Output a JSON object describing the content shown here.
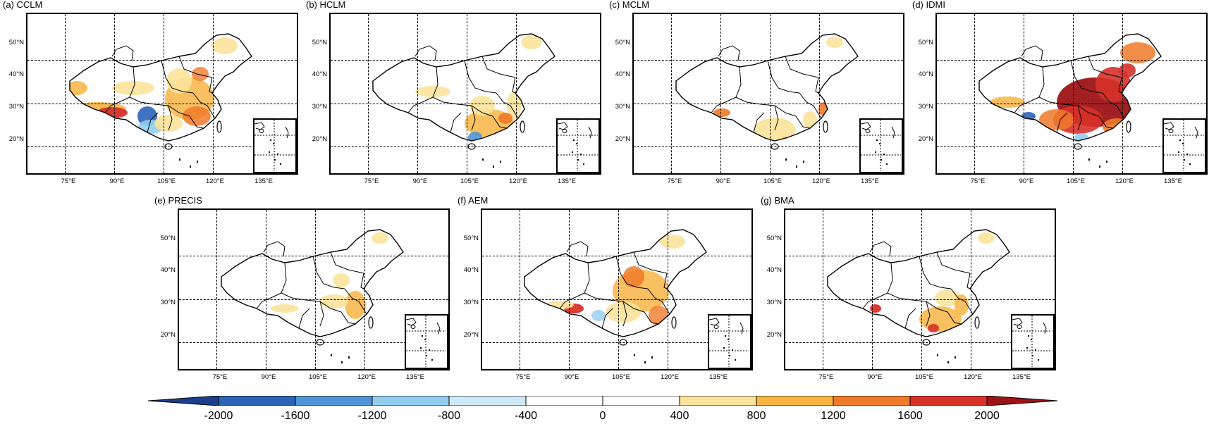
{
  "panels": [
    {
      "title": "(a) CCLM"
    },
    {
      "title": "(b) HCLM"
    },
    {
      "title": "(c) MCLM"
    },
    {
      "title": "(d) IDMI"
    },
    {
      "title": "(e) PRECIS"
    },
    {
      "title": "(f) AEM"
    },
    {
      "title": "(g) BMA"
    }
  ],
  "lat_labels": [
    "50°N",
    "40°N",
    "30°N",
    "20°N"
  ],
  "lon_labels": [
    "75°E",
    "90°E",
    "105°E",
    "120°E",
    "135°E"
  ],
  "colorbar": {
    "labels": [
      "-2000",
      "-1600",
      "-1200",
      "-800",
      "-400",
      "0",
      "400",
      "800",
      "1200",
      "1600",
      "2000"
    ],
    "colors": [
      "#1a3f8f",
      "#2b63b8",
      "#4f95d5",
      "#92cdf0",
      "#cfe8f8",
      "#ffffff",
      "#ffffff",
      "#fbe39b",
      "#f7b544",
      "#f07a2a",
      "#d7312a",
      "#9e1416"
    ]
  }
}
